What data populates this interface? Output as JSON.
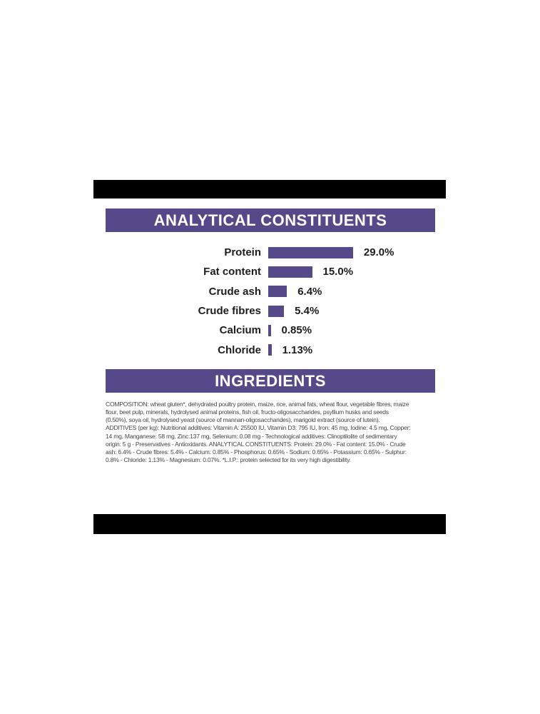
{
  "colors": {
    "brand_purple": "#55498a",
    "trim_black": "#000000",
    "heading_text": "#ffffff",
    "chart_text": "#1d1d1b",
    "body_text": "#454545",
    "background": "#ffffff"
  },
  "sections": {
    "analytical_title": "ANALYTICAL CONSTITUENTS",
    "ingredients_title": "INGREDIENTS"
  },
  "chart_data": {
    "type": "bar",
    "orientation": "horizontal",
    "title": "ANALYTICAL CONSTITUENTS",
    "categories": [
      "Protein",
      "Fat content",
      "Crude ash",
      "Crude fibres",
      "Calcium",
      "Chloride"
    ],
    "values": [
      29.0,
      15.0,
      6.4,
      5.4,
      0.85,
      1.13
    ],
    "value_labels": [
      "29.0%",
      "15.0%",
      "6.4%",
      "5.4%",
      "0.85%",
      "1.13%"
    ],
    "unit": "%",
    "xlim": [
      0,
      30
    ],
    "grid": false,
    "legend": false,
    "bar_color": "#55498a",
    "value_label_position": "right-of-bar"
  },
  "ingredients": {
    "lines": [
      "COMPOSITION: wheat gluten*, dehydrated poultry protein, maize, rice, animal fats, wheat flour, vegetable fibres, maize",
      "flour, beet pulp, minerals, hydrolysed animal proteins, fish oil, fructo-oligosaccharides, psyllium husks and seeds",
      "(0.50%), soya oil, hydrolysed yeast (source of mannan-oligosaccharides), marigold extract (source of lutein).",
      "ADDITIVES (per kg): Nutritional additives: Vitamin A: 25500 IU, Vitamin D3: 795 IU, Iron: 45 mg, Iodine: 4.5 mg, Copper:",
      "14 mg, Manganese: 58 mg, Zinc:137 mg, Selenium: 0.08 mg - Technological additives: Clinoptilolite of sedimentary",
      "origin: 5 g - Preservatives - Antioxidants. ANALYTICAL CONSTITUENTS: Protein: 29.0% - Fat content: 15.0% - Crude",
      "ash: 6.4% - Crude fibres: 5.4% - Calcium: 0.85% - Phosphorus: 0.65% - Sodium: 0.65% - Potassium: 0.65% - Sulphur:",
      "0.8% - Chloride: 1.13% - Magnesium: 0.07%. *L.I.P.: protein selected for its very high digestibility."
    ]
  }
}
